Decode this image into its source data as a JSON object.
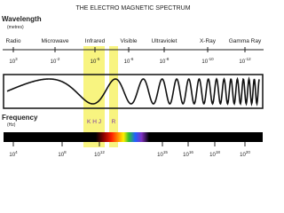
{
  "title": "THE ELECTRO MAGNETIC SPECTRUM",
  "wavelength": {
    "label": "Wavelength",
    "unit": "(metres)",
    "bands": [
      "Radio",
      "Microwave",
      "Infrared",
      "Visible",
      "Ultraviolet",
      "X-Ray",
      "Gamma Ray"
    ],
    "ticks": [
      {
        "base": "10",
        "exponent": "3"
      },
      {
        "base": "10",
        "exponent": "-2"
      },
      {
        "base": "10",
        "exponent": "-5"
      },
      {
        "base": "10",
        "exponent": "-6"
      },
      {
        "base": "10",
        "exponent": "-8"
      },
      {
        "base": "10",
        "exponent": "-10"
      },
      {
        "base": "10",
        "exponent": "-12"
      }
    ]
  },
  "frequency": {
    "label": "Frequency",
    "unit": "(Hz)",
    "ticks": [
      {
        "base": "10",
        "exponent": "4"
      },
      {
        "base": "10",
        "exponent": "8"
      },
      {
        "base": "10",
        "exponent": "12"
      },
      {
        "base": "10",
        "exponent": "15"
      },
      {
        "base": "10",
        "exponent": "16"
      },
      {
        "base": "10",
        "exponent": "18"
      },
      {
        "base": "10",
        "exponent": "20"
      }
    ]
  },
  "markers": {
    "infrared": "K H J",
    "visible": "R"
  }
}
